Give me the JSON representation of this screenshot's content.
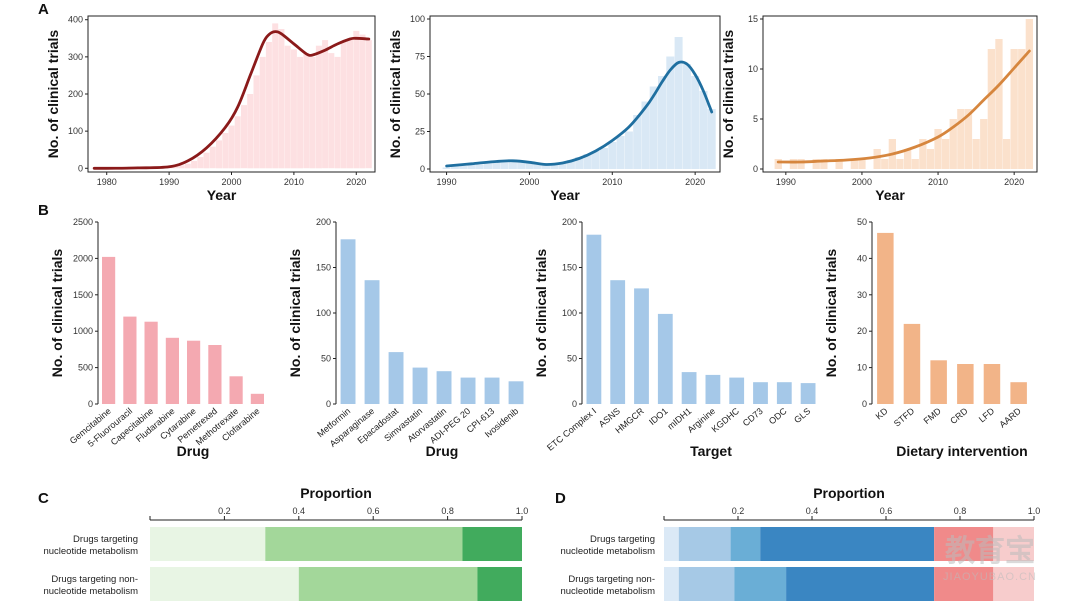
{
  "panels": {
    "A": "A",
    "B": "B",
    "C": "C",
    "D": "D"
  },
  "watermark": {
    "cn": "教育宝",
    "url": "JIAOYUBAO.CN"
  },
  "chart_data": [
    {
      "id": "A1",
      "type": "area",
      "title": "",
      "xlabel": "Year",
      "ylabel": "No. of clinical trials",
      "xlim": [
        1977,
        2023
      ],
      "ylim": [
        -10,
        410
      ],
      "xticks": [
        1980,
        1990,
        2000,
        2010,
        2020
      ],
      "yticks": [
        0,
        100,
        200,
        300,
        400
      ],
      "color": "#8b1a1a",
      "fill": "#fde0e2",
      "bars": {
        "x": [
          1978,
          1979,
          1980,
          1981,
          1982,
          1983,
          1984,
          1985,
          1986,
          1987,
          1988,
          1989,
          1990,
          1991,
          1992,
          1993,
          1994,
          1995,
          1996,
          1997,
          1998,
          1999,
          2000,
          2001,
          2002,
          2003,
          2004,
          2005,
          2006,
          2007,
          2008,
          2009,
          2010,
          2011,
          2012,
          2013,
          2014,
          2015,
          2016,
          2017,
          2018,
          2019,
          2020,
          2021,
          2022
        ],
        "y": [
          1,
          1,
          2,
          1,
          1,
          2,
          1,
          2,
          1,
          2,
          2,
          3,
          3,
          5,
          8,
          12,
          20,
          30,
          42,
          58,
          75,
          95,
          115,
          140,
          170,
          200,
          250,
          300,
          340,
          390,
          375,
          330,
          320,
          300,
          310,
          300,
          330,
          345,
          310,
          300,
          340,
          350,
          370,
          360,
          345
        ]
      },
      "trend": {
        "x": [
          1978,
          1980,
          1985,
          1990,
          1993,
          1996,
          1999,
          2001,
          2003,
          2005,
          2006,
          2007,
          2008,
          2010,
          2012,
          2013,
          2015,
          2017,
          2019,
          2020,
          2022
        ],
        "y": [
          0,
          0,
          1,
          4,
          20,
          55,
          110,
          165,
          250,
          335,
          360,
          368,
          362,
          335,
          308,
          305,
          318,
          335,
          348,
          350,
          348
        ]
      }
    },
    {
      "id": "A2",
      "type": "area",
      "title": "",
      "xlabel": "Year",
      "ylabel": "No. of clinical trials",
      "xlim": [
        1988,
        2023
      ],
      "ylim": [
        -2,
        102
      ],
      "xticks": [
        1990,
        2000,
        2010,
        2020
      ],
      "yticks": [
        0,
        25,
        50,
        75,
        100
      ],
      "color": "#1f6fa0",
      "fill": "#d9e8f5",
      "bars": {
        "x": [
          1990,
          1991,
          1992,
          1993,
          1994,
          1995,
          1996,
          1997,
          1998,
          1999,
          2000,
          2001,
          2002,
          2003,
          2004,
          2005,
          2006,
          2007,
          2008,
          2009,
          2010,
          2011,
          2012,
          2013,
          2014,
          2015,
          2016,
          2017,
          2018,
          2019,
          2020,
          2021,
          2022
        ],
        "y": [
          1,
          2,
          2,
          3,
          3,
          4,
          5,
          6,
          6,
          5,
          4,
          3,
          3,
          3,
          4,
          6,
          8,
          10,
          12,
          14,
          18,
          22,
          25,
          36,
          45,
          55,
          62,
          75,
          88,
          70,
          62,
          52,
          40
        ]
      },
      "trend": {
        "x": [
          1990,
          1993,
          1996,
          1998,
          2000,
          2002,
          2004,
          2006,
          2008,
          2010,
          2012,
          2014,
          2015,
          2016,
          2017,
          2018,
          2019,
          2020,
          2021,
          2022
        ],
        "y": [
          2,
          3.5,
          5,
          5.5,
          4.5,
          3,
          4,
          7,
          12,
          19,
          28,
          41,
          49,
          58,
          66,
          71,
          70,
          63,
          52,
          38
        ]
      }
    },
    {
      "id": "A3",
      "type": "area",
      "title": "",
      "xlabel": "Year",
      "ylabel": "No. of clinical trials",
      "xlim": [
        1987,
        2023
      ],
      "ylim": [
        -0.3,
        15.3
      ],
      "xticks": [
        1990,
        2000,
        2010,
        2020
      ],
      "yticks": [
        0,
        5,
        10,
        15
      ],
      "color": "#d6863e",
      "fill": "#fbe1cc",
      "bars": {
        "x": [
          1989,
          1990,
          1991,
          1992,
          1993,
          1994,
          1995,
          1996,
          1997,
          1998,
          1999,
          2000,
          2001,
          2002,
          2003,
          2004,
          2005,
          2006,
          2007,
          2008,
          2009,
          2010,
          2011,
          2012,
          2013,
          2014,
          2015,
          2016,
          2017,
          2018,
          2019,
          2020,
          2021,
          2022
        ],
        "y": [
          1,
          0,
          1,
          1,
          0,
          1,
          1,
          0,
          1,
          0,
          1,
          1,
          0,
          2,
          1,
          3,
          1,
          2,
          1,
          3,
          2,
          4,
          3,
          5,
          6,
          6,
          3,
          5,
          12,
          13,
          3,
          12,
          12,
          15
        ]
      },
      "trend": {
        "x": [
          1989,
          1992,
          1995,
          1998,
          2001,
          2004,
          2007,
          2010,
          2012,
          2014,
          2016,
          2018,
          2020,
          2022
        ],
        "y": [
          0.7,
          0.7,
          0.8,
          0.9,
          1.1,
          1.5,
          2.2,
          3.2,
          4.2,
          5.4,
          6.9,
          8.4,
          10.1,
          11.8
        ]
      }
    },
    {
      "id": "B1",
      "type": "bar",
      "title": "",
      "xlabel": "Drug",
      "ylabel": "No. of clinical trials",
      "ylim": [
        0,
        2500
      ],
      "yticks": [
        0,
        500,
        1000,
        1500,
        2000,
        2500
      ],
      "color": "#f4a9b1",
      "categories": [
        "Gemcitabine",
        "5-Fluorouracil",
        "Capecitabine",
        "Fludarabine",
        "Cytarabine",
        "Pemetrexed",
        "Methotrexate",
        "Clofarabine"
      ],
      "values": [
        2020,
        1200,
        1130,
        910,
        870,
        810,
        380,
        140
      ]
    },
    {
      "id": "B2",
      "type": "bar",
      "title": "",
      "xlabel": "Drug",
      "ylabel": "No. of clinical trials",
      "ylim": [
        0,
        200
      ],
      "yticks": [
        0,
        50,
        100,
        150,
        200
      ],
      "color": "#a5c8e8",
      "categories": [
        "Metformin",
        "Asparaginase",
        "Epacadostat",
        "Simvastatin",
        "Atorvastatin",
        "ADI-PEG 20",
        "CPI-613",
        "Ivosidenib"
      ],
      "values": [
        181,
        136,
        57,
        40,
        36,
        29,
        29,
        25
      ]
    },
    {
      "id": "B3",
      "type": "bar",
      "title": "",
      "xlabel": "Target",
      "ylabel": "No. of clinical trials",
      "ylim": [
        0,
        200
      ],
      "yticks": [
        0,
        50,
        100,
        150,
        200
      ],
      "color": "#a5c8e8",
      "categories": [
        "ETC Complex I",
        "ASNS",
        "HMGCR",
        "IDO1",
        "mIDH1",
        "Arginine",
        "KGDHC",
        "CD73",
        "ODC",
        "GLS"
      ],
      "values": [
        186,
        136,
        127,
        99,
        35,
        32,
        29,
        24,
        24,
        23
      ]
    },
    {
      "id": "B4",
      "type": "bar",
      "title": "",
      "xlabel": "Dietary intervention",
      "ylabel": "No. of clinical trials",
      "ylim": [
        0,
        50
      ],
      "yticks": [
        0,
        10,
        20,
        30,
        40,
        50
      ],
      "color": "#f2b488",
      "categories": [
        "KD",
        "STFD",
        "FMD",
        "CRD",
        "LFD",
        "AARD"
      ],
      "values": [
        47,
        22,
        12,
        11,
        11,
        6
      ]
    },
    {
      "id": "C",
      "type": "bar",
      "stacked": true,
      "orientation": "horizontal",
      "title": "",
      "xlabel": "Proportion",
      "ylabel": "",
      "xlim": [
        0,
        1.0
      ],
      "xticks": [
        "0.2",
        "0.4",
        "0.6",
        "0.8",
        "1.0"
      ],
      "xtick_values": [
        0.2,
        0.4,
        0.6,
        0.8,
        1.0
      ],
      "categories": [
        "Drugs targeting nucleotide metabolism",
        "Drugs targeting non-nucleotide metabolism"
      ],
      "row_labels": [
        [
          "Drugs targeting",
          "nucleotide metabolism"
        ],
        [
          "Drugs targeting non-",
          "nucleotide metabolism"
        ]
      ],
      "segment_colors": [
        "#e8f5e4",
        "#a3d79a",
        "#41ab5d"
      ],
      "series": [
        {
          "values": [
            0.31,
            0.4
          ]
        },
        {
          "values": [
            0.53,
            0.48
          ]
        },
        {
          "values": [
            0.16,
            0.12
          ]
        }
      ]
    },
    {
      "id": "D",
      "type": "bar",
      "stacked": true,
      "orientation": "horizontal",
      "title": "",
      "xlabel": "Proportion",
      "ylabel": "",
      "xlim": [
        0,
        1.0
      ],
      "xticks": [
        "0.2",
        "0.4",
        "0.6",
        "0.8",
        "1.0"
      ],
      "xtick_values": [
        0.2,
        0.4,
        0.6,
        0.8,
        1.0
      ],
      "categories": [
        "Drugs targeting nucleotide metabolism",
        "Drugs targeting non-nucleotide metabolism"
      ],
      "row_labels": [
        [
          "Drugs targeting",
          "nucleotide metabolism"
        ],
        [
          "Drugs targeting non-",
          "nucleotide metabolism"
        ]
      ],
      "segment_colors": [
        "#dbe9f6",
        "#a6c9e6",
        "#6aaed6",
        "#3a86c2",
        "#f08a8a",
        "#f7cccc"
      ],
      "series": [
        {
          "values": [
            0.04,
            0.04
          ]
        },
        {
          "values": [
            0.14,
            0.15
          ]
        },
        {
          "values": [
            0.08,
            0.14
          ]
        },
        {
          "values": [
            0.47,
            0.4
          ]
        },
        {
          "values": [
            0.16,
            0.16
          ]
        },
        {
          "values": [
            0.11,
            0.11
          ]
        }
      ]
    }
  ]
}
